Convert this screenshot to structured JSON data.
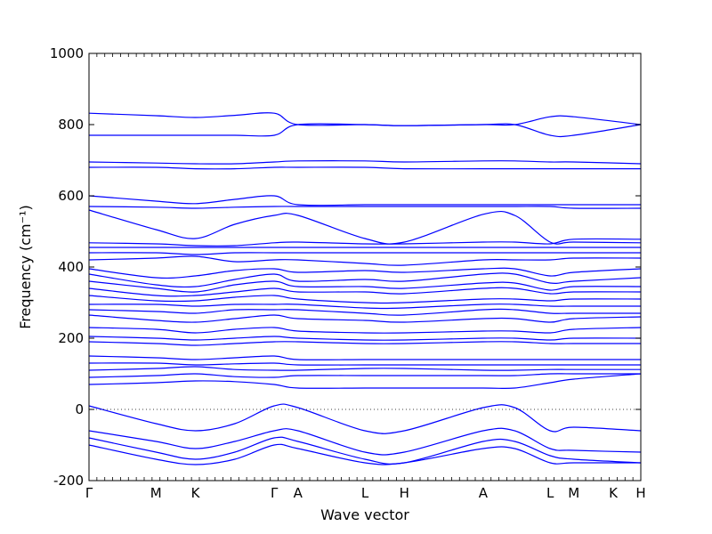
{
  "chart_data": {
    "type": "line",
    "title": "",
    "xlabel": "Wave vector",
    "ylabel": "Frequency (cm⁻¹)",
    "ylim": [
      -200,
      1000
    ],
    "yticks": [
      -200,
      0,
      200,
      400,
      600,
      800,
      1000
    ],
    "xlim": [
      0,
      14.0
    ],
    "high_symmetry_points": [
      {
        "label": "Γ",
        "x": 0.0
      },
      {
        "label": "M",
        "x": 1.7
      },
      {
        "label": "K",
        "x": 2.7
      },
      {
        "label": "Γ",
        "x": 4.7
      },
      {
        "label": "A",
        "x": 5.3
      },
      {
        "label": "L",
        "x": 7.0
      },
      {
        "label": "H",
        "x": 8.0
      },
      {
        "label": "A",
        "x": 10.0
      },
      {
        "label": "L",
        "x": 11.7
      },
      {
        "label": "M",
        "x": 12.3
      },
      {
        "label": "K",
        "x": 13.3
      },
      {
        "label": "H",
        "x": 14.0
      }
    ],
    "zero_line": 0,
    "line_color": "#0000ff",
    "grid": false,
    "series_note_values_cm-1": {
      "representative_bands": [
        [
          832,
          825,
          820,
          826,
          832,
          800,
          800,
          797,
          800,
          800,
          822,
          822,
          800
        ],
        [
          770,
          770,
          770,
          770,
          770,
          800,
          800,
          797,
          800,
          800,
          770,
          770,
          800
        ],
        [
          695,
          692,
          690,
          690,
          695,
          698,
          698,
          695,
          698,
          698,
          695,
          695,
          690
        ],
        [
          680,
          680,
          676,
          676,
          680,
          680,
          680,
          676,
          676,
          676,
          676,
          676,
          676
        ],
        [
          600,
          585,
          578,
          590,
          600,
          575,
          575,
          575,
          575,
          575,
          575,
          575,
          575
        ],
        [
          570,
          568,
          565,
          568,
          570,
          570,
          570,
          570,
          570,
          570,
          570,
          565,
          565
        ],
        [
          560,
          505,
          480,
          520,
          545,
          545,
          480,
          470,
          548,
          545,
          470,
          470,
          468
        ],
        [
          468,
          465,
          460,
          460,
          468,
          470,
          465,
          465,
          470,
          470,
          465,
          478,
          478
        ],
        [
          455,
          455,
          455,
          455,
          455,
          455,
          455,
          455,
          455,
          455,
          455,
          455,
          455
        ],
        [
          440,
          440,
          435,
          440,
          440,
          440,
          440,
          440,
          440,
          440,
          440,
          440,
          440
        ],
        [
          420,
          425,
          430,
          415,
          420,
          420,
          410,
          405,
          420,
          420,
          420,
          425,
          425
        ],
        [
          395,
          370,
          375,
          390,
          395,
          385,
          390,
          385,
          395,
          395,
          375,
          385,
          395
        ],
        [
          380,
          350,
          345,
          365,
          380,
          360,
          365,
          360,
          380,
          380,
          355,
          360,
          370
        ],
        [
          360,
          340,
          330,
          350,
          360,
          345,
          345,
          340,
          355,
          355,
          335,
          345,
          345
        ],
        [
          340,
          320,
          320,
          330,
          340,
          330,
          330,
          325,
          340,
          340,
          325,
          330,
          330
        ],
        [
          320,
          305,
          305,
          315,
          320,
          310,
          300,
          300,
          310,
          310,
          305,
          310,
          310
        ],
        [
          295,
          295,
          290,
          295,
          295,
          295,
          285,
          285,
          295,
          295,
          290,
          290,
          290
        ],
        [
          280,
          275,
          270,
          280,
          280,
          280,
          270,
          265,
          280,
          280,
          270,
          270,
          270
        ],
        [
          265,
          250,
          245,
          255,
          265,
          255,
          250,
          245,
          255,
          255,
          245,
          255,
          260
        ],
        [
          230,
          225,
          215,
          225,
          230,
          220,
          215,
          215,
          220,
          220,
          215,
          225,
          230
        ],
        [
          205,
          200,
          195,
          200,
          205,
          200,
          195,
          195,
          200,
          200,
          195,
          200,
          200
        ],
        [
          190,
          185,
          180,
          185,
          190,
          190,
          185,
          185,
          190,
          190,
          185,
          185,
          185
        ],
        [
          150,
          145,
          140,
          145,
          150,
          140,
          140,
          140,
          140,
          140,
          140,
          140,
          140
        ],
        [
          130,
          130,
          125,
          128,
          130,
          125,
          125,
          125,
          125,
          125,
          125,
          125,
          125
        ],
        [
          110,
          115,
          120,
          112,
          110,
          110,
          115,
          115,
          110,
          110,
          112,
          112,
          112
        ],
        [
          90,
          95,
          100,
          92,
          90,
          95,
          95,
          95,
          95,
          95,
          100,
          100,
          100
        ],
        [
          70,
          75,
          80,
          78,
          70,
          60,
          60,
          60,
          60,
          60,
          75,
          85,
          100
        ],
        [
          10,
          -40,
          -60,
          -40,
          10,
          5,
          -60,
          -60,
          5,
          5,
          -60,
          -50,
          -60
        ],
        [
          -60,
          -90,
          -110,
          -90,
          -60,
          -60,
          -120,
          -120,
          -60,
          -60,
          -110,
          -115,
          -120
        ],
        [
          -80,
          -120,
          -140,
          -120,
          -80,
          -90,
          -140,
          -150,
          -90,
          -90,
          -130,
          -140,
          -150
        ],
        [
          -100,
          -140,
          -155,
          -140,
          -100,
          -110,
          -150,
          -150,
          -110,
          -110,
          -150,
          -150,
          -150
        ]
      ],
      "sample_x": [
        0.0,
        1.7,
        2.7,
        3.7,
        4.7,
        5.3,
        7.0,
        8.0,
        10.0,
        10.8,
        11.7,
        12.3,
        14.0
      ]
    }
  }
}
